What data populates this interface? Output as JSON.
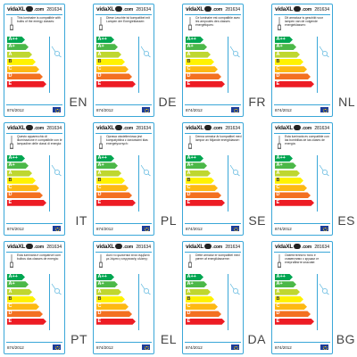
{
  "brand": {
    "name": "vidaXL",
    "suffix": ".com"
  },
  "product_code": "281634",
  "regulation": "874/2012",
  "bar_colors": [
    "#00a651",
    "#4cb848",
    "#bfd730",
    "#fff200",
    "#fdb913",
    "#f37021",
    "#ed1c24"
  ],
  "bar_letters": [
    "A++",
    "A+",
    "A",
    "B",
    "C",
    "D",
    "E"
  ],
  "labels": [
    {
      "lang": "EN",
      "desc": "This luminaire is compatible with bulbs of the energy classes:"
    },
    {
      "lang": "DE",
      "desc": "Diese Leuchte ist kompatibel mit Lampen der Energieklassen:"
    },
    {
      "lang": "FR",
      "desc": "Ce luminaire est compatible avec les ampoules des classes énergétiques:"
    },
    {
      "lang": "NL",
      "desc": "Dit armatuur is geschikt voor lampen van de volgende energieklassen:"
    },
    {
      "lang": "IT",
      "desc": "Questo apparecchio di illuminazione è compatibile con le lampadine delle classi di energia:"
    },
    {
      "lang": "PL",
      "desc": "Oprawa oświetleniowa jest kompatybilna z żarówkami klas energetycznych:"
    },
    {
      "lang": "SE",
      "desc": "Denna armatur är kompatibel med lampor av följande energiklasser:"
    },
    {
      "lang": "ES",
      "desc": "Esta luminaria es compatible con las bombillas de las clases de energía:"
    },
    {
      "lang": "PT",
      "desc": "Esta luminária é compatível com bulbos das classes de energia:"
    },
    {
      "lang": "EL",
      "desc": "Αυτό το φωτιστικό είναι συμβατό με λάμπες ενεργειακής κλάσης:"
    },
    {
      "lang": "DA",
      "desc": "Dette armatur er kompatibel med pærer af energiklasserne:"
    },
    {
      "lang": "BG",
      "desc": "Осветителното тяло е съвместимо с крушки от енергийните класове:"
    }
  ]
}
